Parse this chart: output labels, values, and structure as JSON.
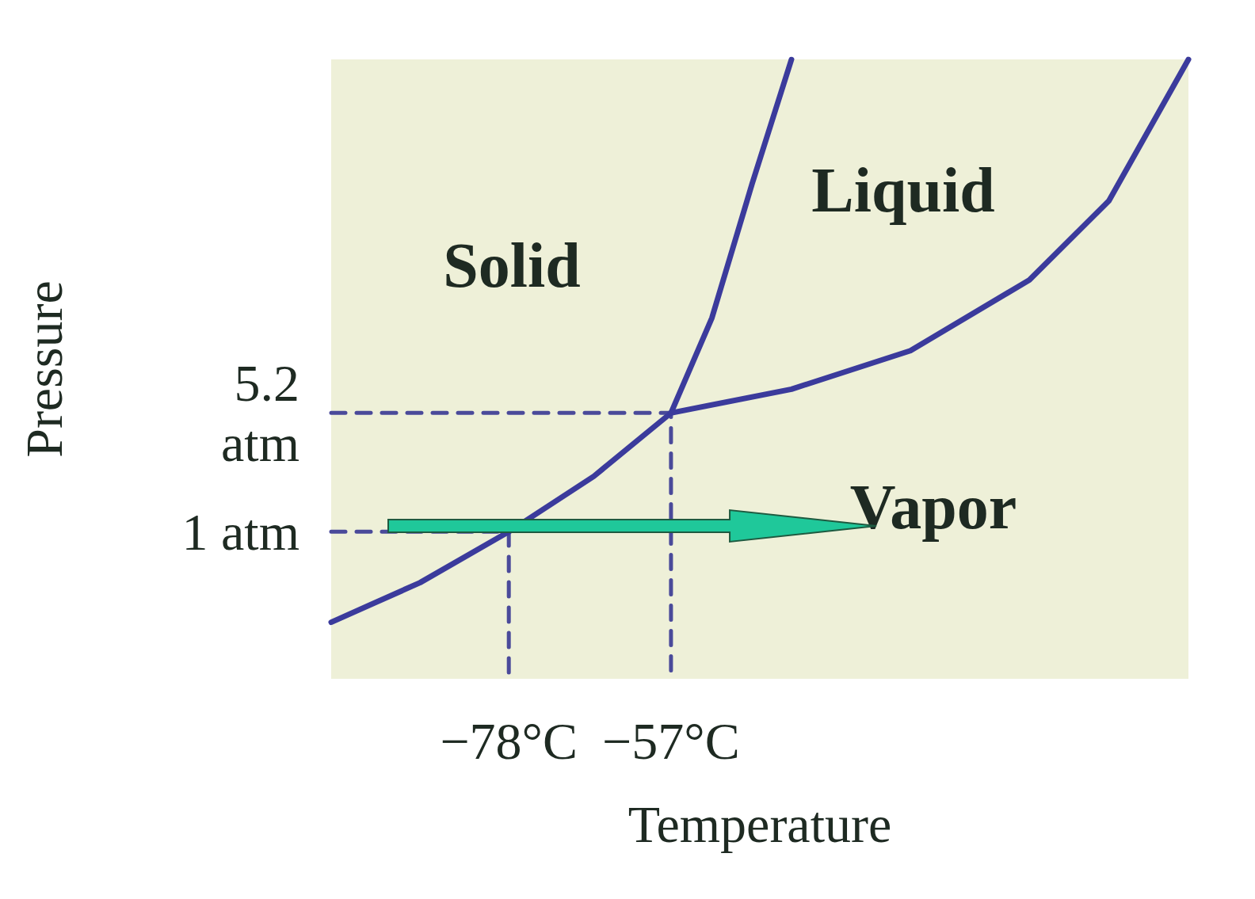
{
  "chart_data": {
    "type": "line",
    "xlabel": "Temperature",
    "ylabel": "Pressure",
    "xlim": [
      -101,
      10
    ],
    "ylim": [
      -4.2,
      17.7
    ],
    "xticks": [
      {
        "value": -78,
        "label": "−78°C"
      },
      {
        "value": -57,
        "label": "−57°C"
      }
    ],
    "yticks": [
      {
        "value": 1,
        "label": "1 atm"
      },
      {
        "value": 5.2,
        "label": "5.2\natm"
      }
    ],
    "grid": false,
    "marker": "none",
    "series": [
      {
        "color": "#3b3b9c",
        "line_style": "solid",
        "x": [
          -101,
          -89.5,
          -78,
          -67,
          -57
        ],
        "values": [
          -2.2,
          -0.8,
          1,
          2.96,
          5.2
        ]
      },
      {
        "color": "#3b3b9c",
        "line_style": "solid",
        "x": [
          -57,
          -51.7,
          -46.5,
          -41.4
        ],
        "values": [
          5.2,
          8.56,
          13.3,
          17.7
        ]
      },
      {
        "color": "#3b3b9c",
        "line_style": "solid",
        "x": [
          -57,
          -41.4,
          -26,
          -10.6,
          -0.3,
          10
        ],
        "values": [
          5.2,
          6.04,
          7.4,
          9.9,
          12.7,
          17.7
        ]
      },
      {
        "color": "#4a4a9a",
        "line_style": "dashed",
        "x": [
          -101,
          -57,
          -57
        ],
        "values": [
          5.2,
          5.2,
          -4.2
        ]
      },
      {
        "color": "#4a4a9a",
        "line_style": "dashed",
        "x": [
          -101,
          -78,
          -78
        ],
        "values": [
          1,
          1,
          -4.2
        ]
      }
    ],
    "annotations": [
      "Solid",
      "Liquid",
      "Vapor"
    ]
  }
}
